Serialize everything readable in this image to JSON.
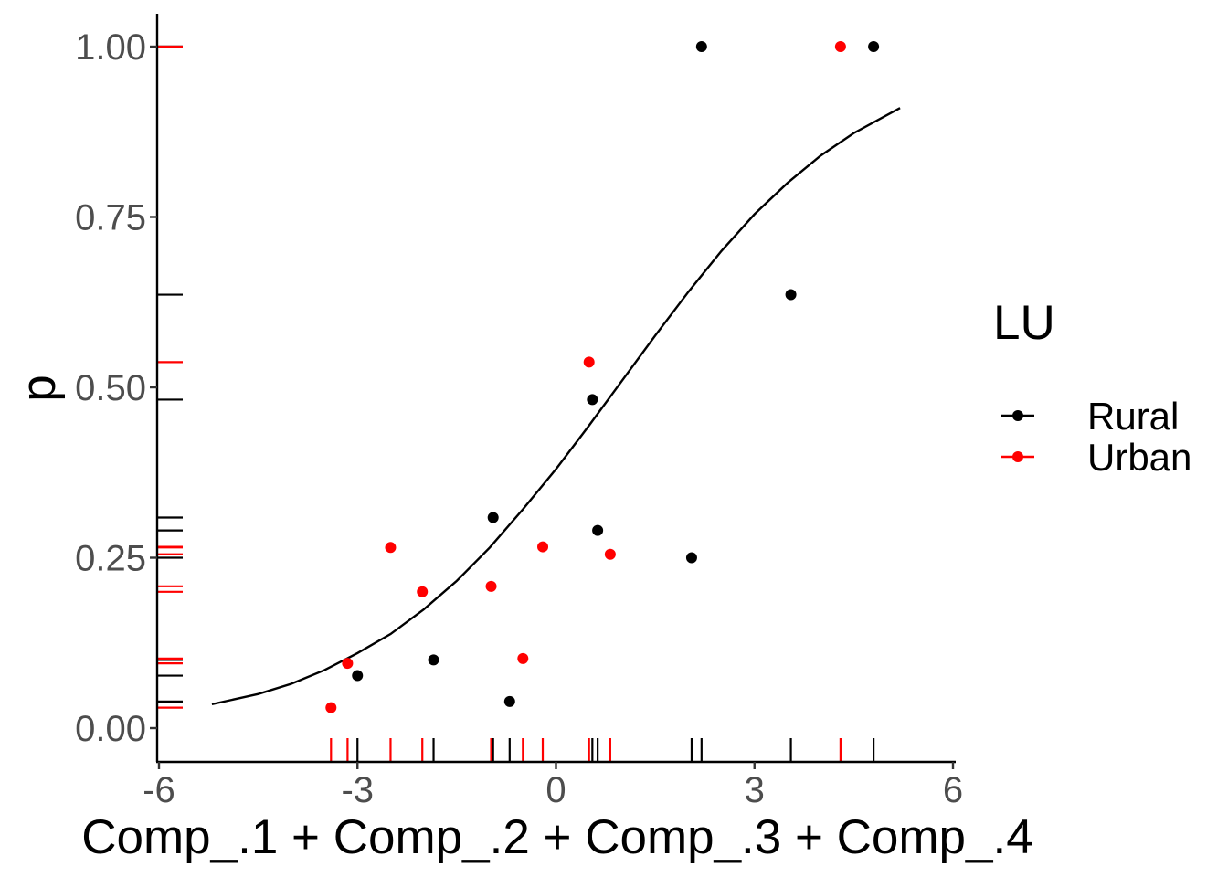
{
  "chart_data": {
    "type": "scatter",
    "xlabel": "Comp_.1 + Comp_.2 + Comp_.3 + Comp_.4",
    "ylabel": "p",
    "xlim": [
      -6,
      6
    ],
    "ylim": [
      -0.045,
      1.05
    ],
    "x_ticks": [
      -6,
      -3,
      0,
      3,
      6
    ],
    "x_tick_labels": [
      "-6",
      "-3",
      "0",
      "3",
      "6"
    ],
    "y_ticks": [
      0,
      0.25,
      0.5,
      0.75,
      1
    ],
    "y_tick_labels": [
      "0.00",
      "0.25",
      "0.50",
      "0.75",
      "1.00"
    ],
    "grid": false,
    "legend": {
      "title": "LU",
      "position": "right",
      "entries": [
        "Rural",
        "Urban"
      ]
    },
    "series": [
      {
        "name": "Rural",
        "color": "#000000",
        "points": [
          {
            "x": 2.2,
            "y": 1.0
          },
          {
            "x": 4.8,
            "y": 1.0
          },
          {
            "x": 3.55,
            "y": 0.636
          },
          {
            "x": 0.55,
            "y": 0.482
          },
          {
            "x": -0.95,
            "y": 0.309
          },
          {
            "x": 0.63,
            "y": 0.29
          },
          {
            "x": 2.05,
            "y": 0.25
          },
          {
            "x": -1.85,
            "y": 0.1
          },
          {
            "x": -3.0,
            "y": 0.077
          },
          {
            "x": -0.7,
            "y": 0.039
          }
        ]
      },
      {
        "name": "Urban",
        "color": "#ff0000",
        "points": [
          {
            "x": 4.3,
            "y": 1.0
          },
          {
            "x": 0.5,
            "y": 0.537
          },
          {
            "x": -2.5,
            "y": 0.265
          },
          {
            "x": -0.2,
            "y": 0.266
          },
          {
            "x": 0.82,
            "y": 0.255
          },
          {
            "x": -0.98,
            "y": 0.208
          },
          {
            "x": -2.02,
            "y": 0.2
          },
          {
            "x": -0.5,
            "y": 0.102
          },
          {
            "x": -3.15,
            "y": 0.095
          },
          {
            "x": -3.4,
            "y": 0.03
          }
        ]
      }
    ],
    "fit_curve": {
      "color": "#000000",
      "x": [
        -5.2,
        -4.5,
        -4.0,
        -3.5,
        -3.0,
        -2.5,
        -2.0,
        -1.5,
        -1.0,
        -0.5,
        0.0,
        0.5,
        1.0,
        1.5,
        2.0,
        2.5,
        3.0,
        3.5,
        4.0,
        4.5,
        5.2
      ],
      "y": [
        0.035,
        0.05,
        0.065,
        0.085,
        0.11,
        0.138,
        0.174,
        0.216,
        0.265,
        0.321,
        0.38,
        0.444,
        0.51,
        0.576,
        0.64,
        0.7,
        0.754,
        0.8,
        0.84,
        0.873,
        0.91
      ]
    }
  }
}
